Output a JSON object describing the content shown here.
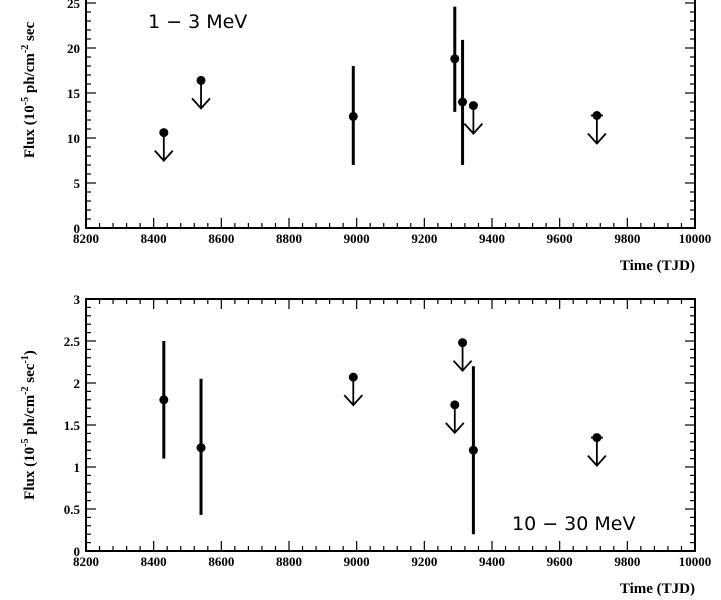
{
  "chart_data": [
    {
      "type": "scatter",
      "panel_label": "1 − 3 MeV",
      "xlabel": "Time (TJD)",
      "ylabel_main": "Flux (10",
      "ylabel_exp": "-5",
      "ylabel_tail": " ph/cm",
      "ylabel_exp2": "-2",
      "ylabel_end": " sec",
      "xlim": [
        8200,
        10000
      ],
      "ylim": [
        0,
        28
      ],
      "xticks": [
        8200,
        8400,
        8600,
        8800,
        9000,
        9200,
        9400,
        9600,
        9800,
        10000
      ],
      "yticks": [
        0,
        5,
        10,
        15,
        20,
        25
      ],
      "points": [
        {
          "x": 8430,
          "y": 10.6,
          "kind": "upper_limit"
        },
        {
          "x": 8540,
          "y": 16.4,
          "kind": "upper_limit"
        },
        {
          "x": 8990,
          "y": 12.4,
          "kind": "detection",
          "err_low": 7.0,
          "err_high": 18.0
        },
        {
          "x": 9290,
          "y": 18.8,
          "kind": "detection",
          "err_low": 12.9,
          "err_high": 24.6
        },
        {
          "x": 9313,
          "y": 14.0,
          "kind": "detection",
          "err_low": 7.0,
          "err_high": 20.9
        },
        {
          "x": 9345,
          "y": 13.6,
          "kind": "upper_limit"
        },
        {
          "x": 9710,
          "y": 12.5,
          "kind": "upper_limit"
        }
      ]
    },
    {
      "type": "scatter",
      "panel_label": "10 − 30 MeV",
      "xlabel": "Time (TJD)",
      "ylabel_main": "Flux (10",
      "ylabel_exp": "-5",
      "ylabel_tail": " ph/cm",
      "ylabel_exp2": "-2",
      "ylabel_end": " sec",
      "ylabel_exp3": "-1",
      "ylabel_close": ")",
      "xlim": [
        8200,
        10000
      ],
      "ylim": [
        0,
        3
      ],
      "xticks": [
        8200,
        8400,
        8600,
        8800,
        9000,
        9200,
        9400,
        9600,
        9800,
        10000
      ],
      "yticks": [
        0,
        0.5,
        1,
        1.5,
        2,
        2.5,
        3
      ],
      "points": [
        {
          "x": 8430,
          "y": 1.8,
          "kind": "detection",
          "err_low": 1.1,
          "err_high": 2.5
        },
        {
          "x": 8540,
          "y": 1.23,
          "kind": "detection",
          "err_low": 0.43,
          "err_high": 2.05
        },
        {
          "x": 8990,
          "y": 2.07,
          "kind": "upper_limit"
        },
        {
          "x": 9290,
          "y": 1.74,
          "kind": "upper_limit"
        },
        {
          "x": 9313,
          "y": 2.48,
          "kind": "upper_limit"
        },
        {
          "x": 9345,
          "y": 1.2,
          "kind": "detection",
          "err_low": 0.2,
          "err_high": 2.2
        },
        {
          "x": 9710,
          "y": 1.35,
          "kind": "upper_limit"
        }
      ]
    }
  ]
}
